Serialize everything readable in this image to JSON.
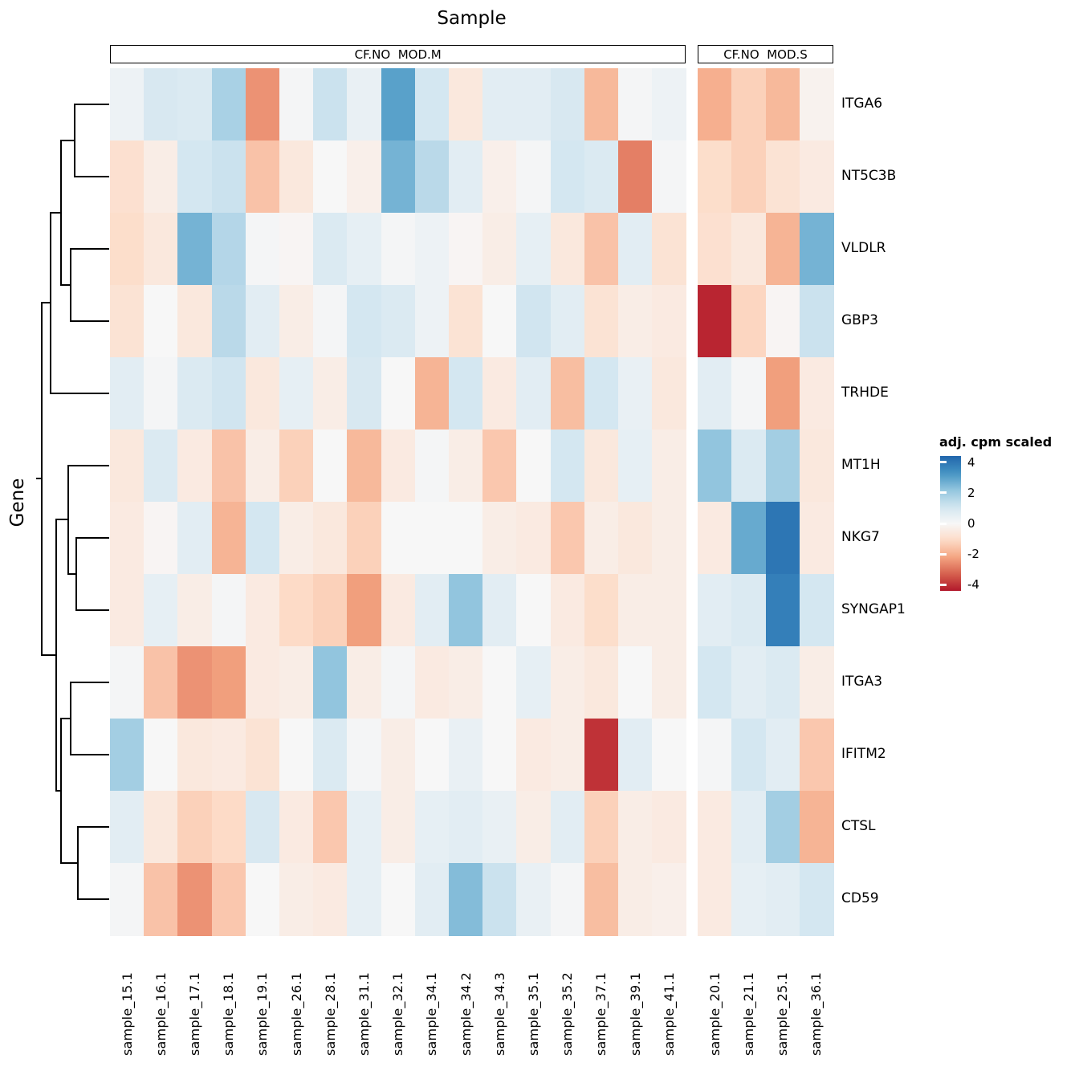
{
  "chart_data": {
    "type": "heatmap",
    "title": "Sample",
    "ylabel": "Gene",
    "legend": {
      "title": "adj. cpm scaled",
      "ticks": [
        "4",
        "2",
        "0",
        "-2",
        "-4"
      ],
      "tick_values": [
        4,
        2,
        0,
        -2,
        -4
      ],
      "range": [
        -4.4,
        4.4
      ]
    },
    "column_groups": [
      {
        "label": "CF.NO  MOD.M",
        "columns": 17
      },
      {
        "label": "CF.NO  MOD.S",
        "columns": 4
      }
    ],
    "rows": [
      "ITGA6",
      "NT5C3B",
      "VLDLR",
      "GBP3",
      "TRHDE",
      "MT1H",
      "NKG7",
      "SYNGAP1",
      "ITGA3",
      "IFITM2",
      "CTSL",
      "CD59"
    ],
    "columns": [
      "sample_15.1",
      "sample_16.1",
      "sample_17.1",
      "sample_18.1",
      "sample_19.1",
      "sample_26.1",
      "sample_28.1",
      "sample_31.1",
      "sample_32.1",
      "sample_34.1",
      "sample_34.2",
      "sample_34.3",
      "sample_35.1",
      "sample_35.2",
      "sample_37.1",
      "sample_39.1",
      "sample_41.1",
      "sample_20.1",
      "sample_21.1",
      "sample_25.1",
      "sample_36.1"
    ],
    "values": [
      [
        0.3,
        0.9,
        0.8,
        1.8,
        -2.5,
        0.1,
        1.2,
        0.4,
        3.0,
        1.0,
        -0.6,
        0.6,
        0.6,
        0.9,
        -1.8,
        0.1,
        0.3,
        -2.0,
        -1.3,
        -1.8,
        -0.2
      ],
      [
        -0.9,
        -0.4,
        1.0,
        1.2,
        -1.6,
        -0.6,
        0.0,
        -0.3,
        2.6,
        1.5,
        0.6,
        -0.3,
        0.1,
        1.0,
        0.8,
        -2.8,
        0.1,
        -1.0,
        -1.3,
        -0.8,
        -0.5
      ],
      [
        -1.0,
        -0.6,
        2.6,
        1.6,
        0.1,
        -0.1,
        0.8,
        0.5,
        0.1,
        0.3,
        -0.1,
        -0.4,
        0.5,
        -0.6,
        -1.6,
        0.6,
        -0.8,
        -0.9,
        -0.6,
        -1.9,
        2.6
      ],
      [
        -0.8,
        0.0,
        -0.6,
        1.5,
        0.6,
        -0.4,
        0.1,
        1.0,
        0.8,
        0.3,
        -0.8,
        0.0,
        1.1,
        0.6,
        -0.8,
        -0.4,
        -0.5,
        -4.2,
        -1.2,
        -0.1,
        1.2
      ],
      [
        0.6,
        0.1,
        0.8,
        1.1,
        -0.6,
        0.5,
        -0.4,
        0.9,
        0.0,
        -1.9,
        1.0,
        -0.5,
        0.6,
        -1.7,
        1.0,
        0.4,
        -0.6,
        0.6,
        0.1,
        -2.3,
        -0.5
      ],
      [
        -0.6,
        0.8,
        -0.5,
        -1.6,
        -0.4,
        -1.3,
        0.0,
        -1.8,
        -0.5,
        0.1,
        -0.4,
        -1.5,
        0.0,
        1.0,
        -0.6,
        0.5,
        -0.4,
        2.2,
        0.8,
        1.9,
        -0.6
      ],
      [
        -0.5,
        -0.1,
        0.6,
        -1.9,
        1.0,
        -0.4,
        -0.6,
        -1.3,
        0.0,
        0.0,
        0.0,
        -0.4,
        -0.5,
        -1.5,
        -0.4,
        -0.6,
        -0.4,
        -0.5,
        2.8,
        4.0,
        -0.5
      ],
      [
        -0.5,
        0.5,
        -0.4,
        0.1,
        -0.5,
        -1.1,
        -1.3,
        -2.3,
        -0.5,
        0.6,
        2.2,
        0.6,
        0.0,
        -0.5,
        -1.0,
        -0.4,
        -0.4,
        0.6,
        0.8,
        3.8,
        1.0
      ],
      [
        0.1,
        -1.6,
        -2.5,
        -2.3,
        -0.5,
        -0.4,
        2.2,
        -0.4,
        0.1,
        -0.5,
        -0.4,
        0.0,
        0.5,
        -0.4,
        -0.6,
        0.0,
        -0.4,
        1.0,
        0.6,
        0.8,
        -0.4
      ],
      [
        1.9,
        0.0,
        -0.6,
        -0.5,
        -0.8,
        0.0,
        0.8,
        0.1,
        -0.4,
        0.0,
        0.4,
        0.0,
        -0.5,
        -0.4,
        -4.0,
        0.6,
        0.0,
        0.1,
        1.0,
        0.6,
        -1.5
      ],
      [
        0.6,
        -0.6,
        -1.3,
        -1.1,
        0.9,
        -0.5,
        -1.5,
        0.5,
        -0.4,
        0.5,
        0.6,
        0.4,
        -0.4,
        0.6,
        -1.3,
        -0.4,
        -0.5,
        -0.5,
        0.6,
        1.9,
        -1.9
      ],
      [
        0.1,
        -1.6,
        -2.5,
        -1.5,
        0.0,
        -0.4,
        -0.5,
        0.5,
        0.0,
        0.6,
        2.4,
        1.2,
        0.4,
        0.1,
        -1.7,
        -0.4,
        -0.3,
        -0.5,
        0.5,
        0.6,
        1.0
      ]
    ],
    "colormap": {
      "name": "RdBu_reversed",
      "stops": [
        {
          "v": -5.5,
          "c": "#67001f"
        },
        {
          "v": -4.4,
          "c": "#b2182b"
        },
        {
          "v": -3.3,
          "c": "#d6604d"
        },
        {
          "v": -2.2,
          "c": "#f4a582"
        },
        {
          "v": -1.1,
          "c": "#fddbc7"
        },
        {
          "v": 0.0,
          "c": "#f7f7f7"
        },
        {
          "v": 1.1,
          "c": "#d1e5f0"
        },
        {
          "v": 2.2,
          "c": "#92c5de"
        },
        {
          "v": 3.3,
          "c": "#4393c3"
        },
        {
          "v": 4.4,
          "c": "#2166ac"
        },
        {
          "v": 5.5,
          "c": "#053061"
        }
      ]
    }
  }
}
